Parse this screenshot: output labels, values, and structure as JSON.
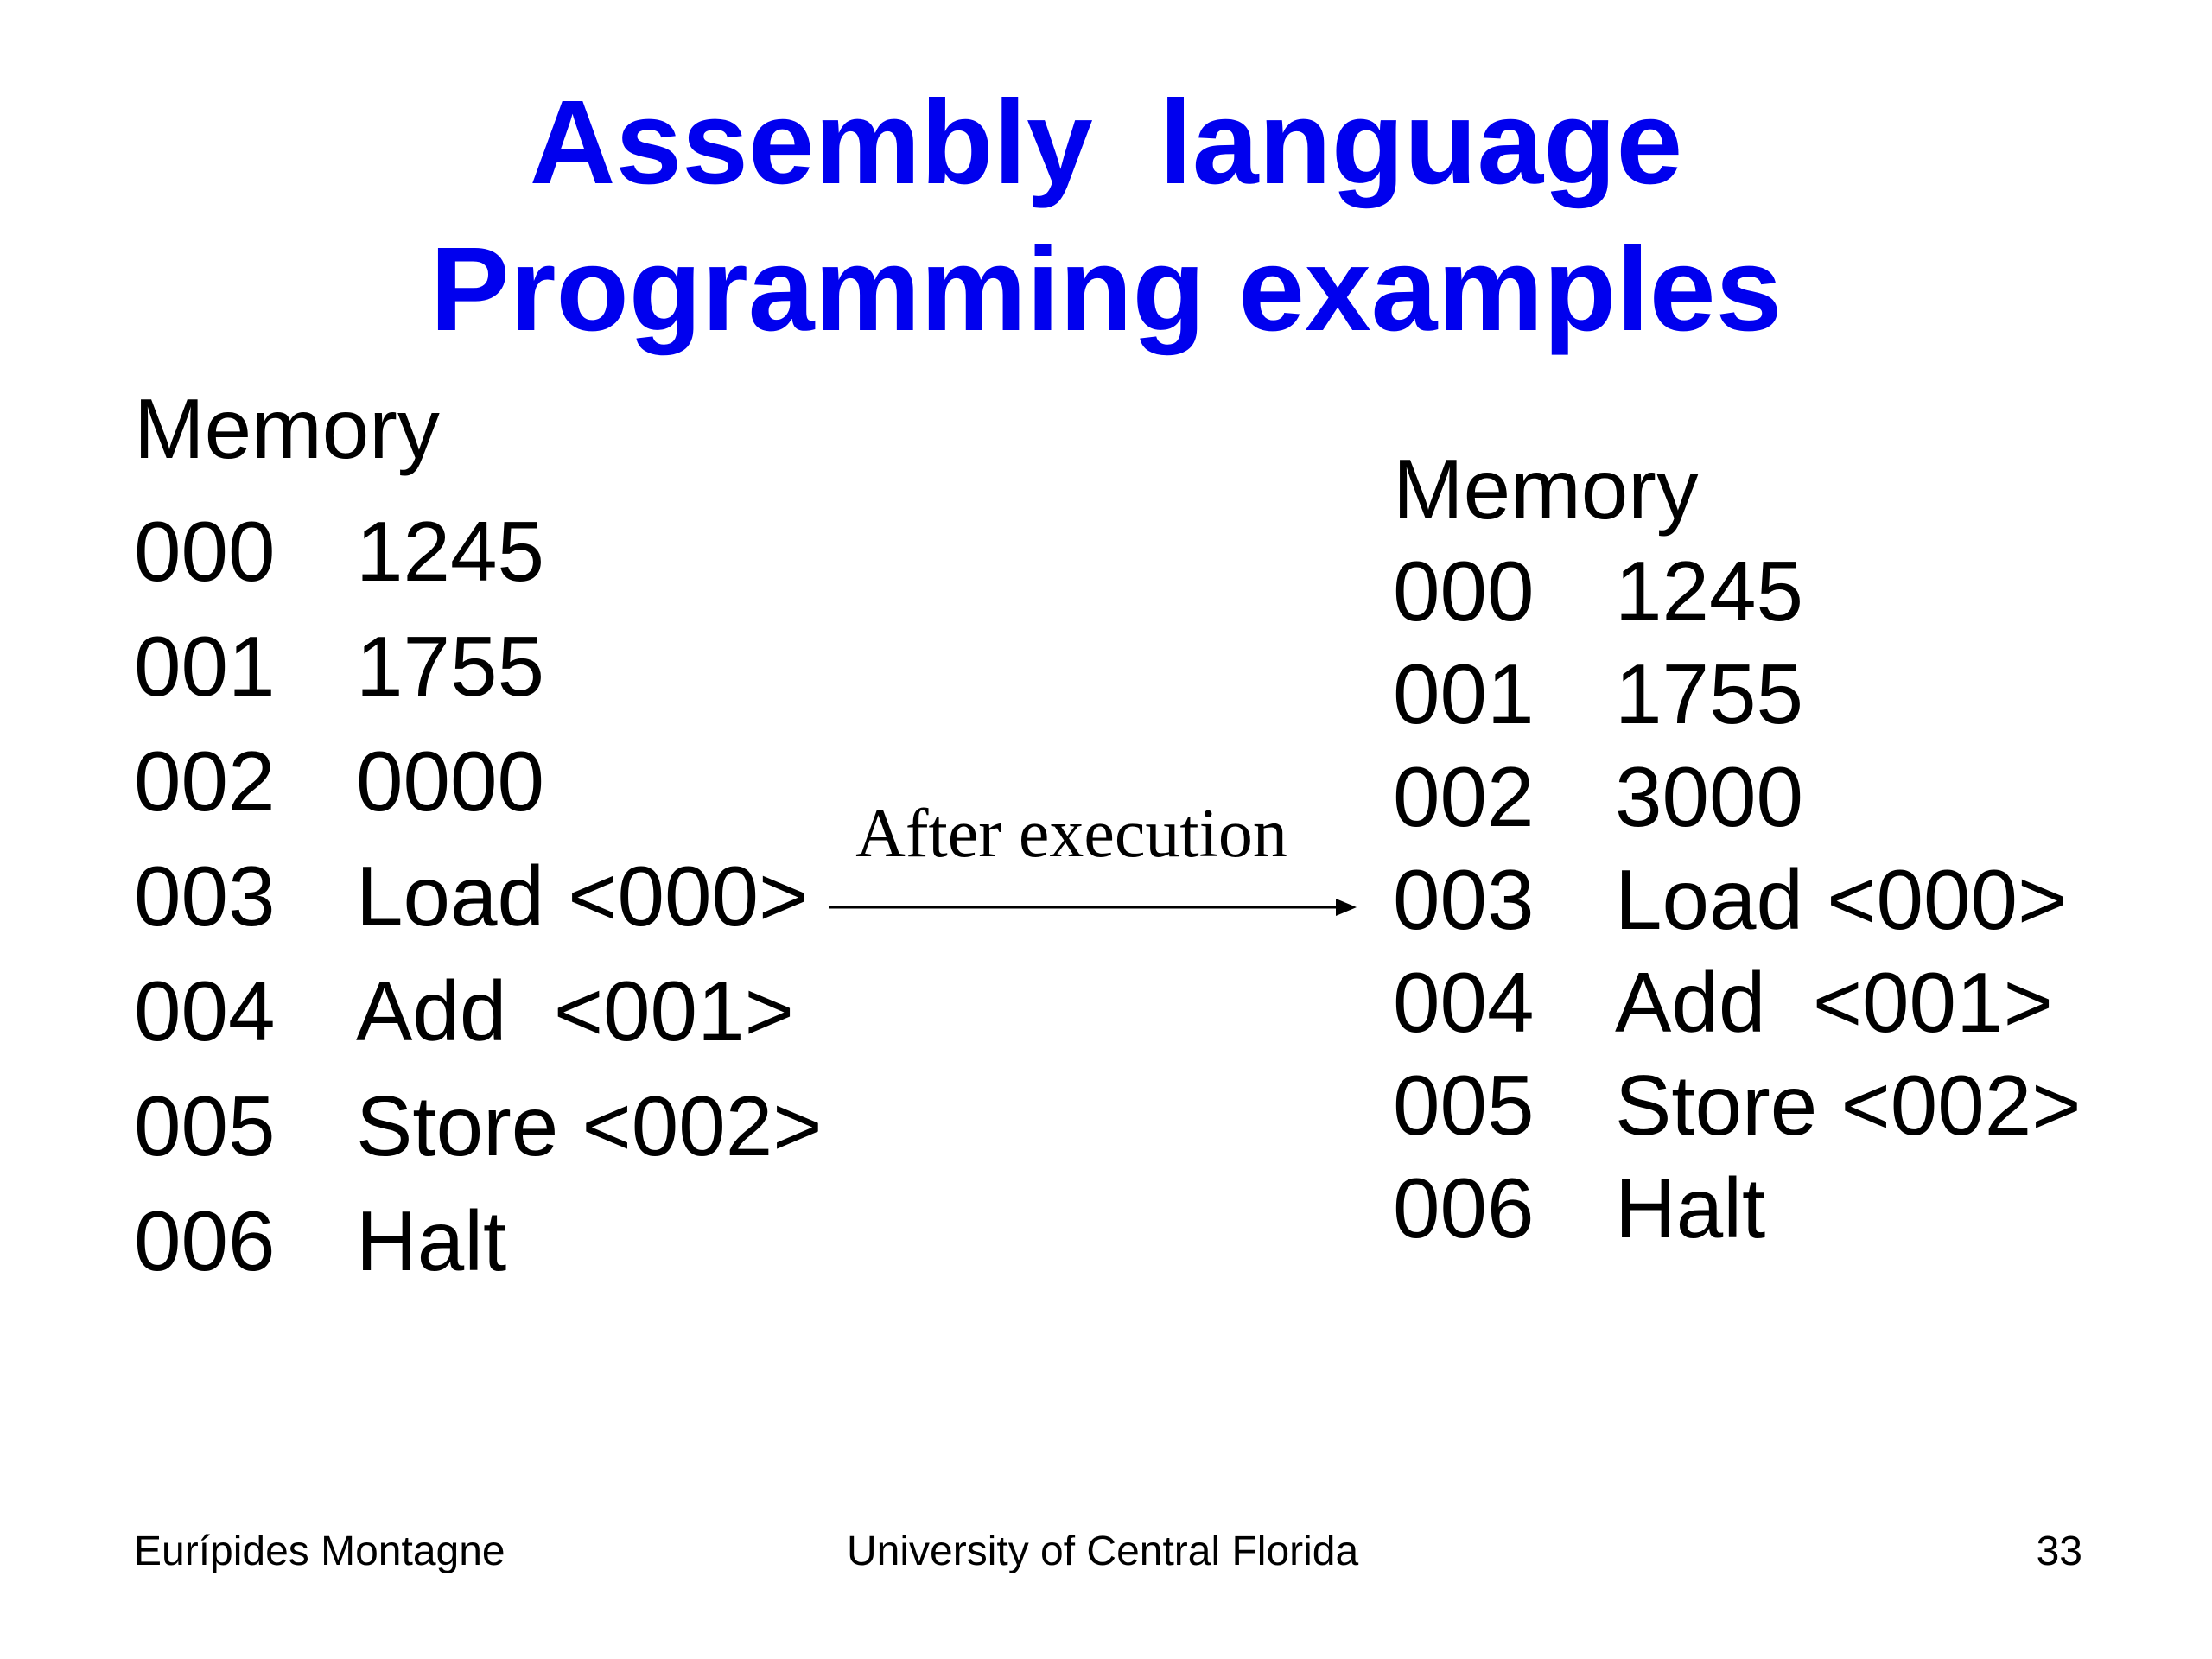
{
  "title": {
    "line1": "Assembly  language",
    "line2": "Programming examples"
  },
  "memory_before": {
    "heading": "Memory",
    "rows": [
      {
        "addr": "000",
        "value": "1245"
      },
      {
        "addr": "001",
        "value": "1755"
      },
      {
        "addr": "002",
        "value": "0000"
      },
      {
        "addr": "003",
        "value": "Load <000>"
      },
      {
        "addr": "004",
        "value": "Add  <001>"
      },
      {
        "addr": "005",
        "value": "Store <002>"
      },
      {
        "addr": "006",
        "value": "Halt"
      }
    ]
  },
  "transition": {
    "label": "After execution",
    "icon": "right-arrow-icon"
  },
  "memory_after": {
    "heading": "Memory",
    "rows": [
      {
        "addr": "000",
        "value": "1245"
      },
      {
        "addr": "001",
        "value": "1755"
      },
      {
        "addr": "002",
        "value": "3000"
      },
      {
        "addr": "003",
        "value": "Load <000>"
      },
      {
        "addr": "004",
        "value": "Add  <001>"
      },
      {
        "addr": "005",
        "value": "Store <002>"
      },
      {
        "addr": "006",
        "value": "Halt"
      }
    ]
  },
  "footer": {
    "author": "Eurípides Montagne",
    "university": "University of Central Florida",
    "page_number": "33"
  },
  "colors": {
    "title": "#0000ee",
    "text": "#000000",
    "background": "#ffffff"
  }
}
